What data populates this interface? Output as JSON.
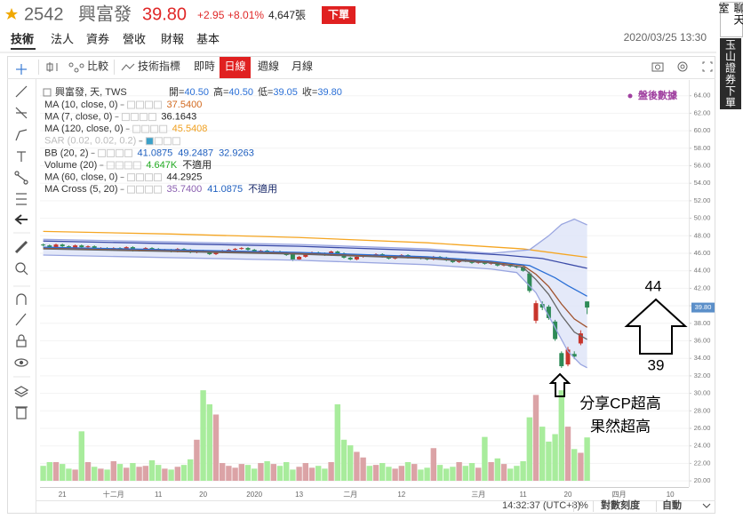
{
  "header": {
    "stock_code": "2542",
    "stock_name": "興富發",
    "price": "39.80",
    "change": "+2.95",
    "change_pct": "+8.01%",
    "volume": "4,647張",
    "order_button": "下單"
  },
  "tabs": [
    "技術",
    "法人",
    "資券",
    "營收",
    "財報",
    "基本"
  ],
  "datetime": "2020/03/25 13:30",
  "toolbar": {
    "compare": "比較",
    "indicators": "技術指標",
    "realtime": "即時",
    "daily": "日線",
    "weekly": "週線",
    "monthly": "月線"
  },
  "side_panel": {
    "chat": "聊天室",
    "broker": "玉山證券下單"
  },
  "status_bar": {
    "clock": "14:32:37 (UTC+8)",
    "percent": "%",
    "log_scale": "對數刻度",
    "auto": "自動"
  },
  "annotations": {
    "high": 44,
    "low": 39,
    "note_lines": [
      "分享CP超高",
      "果然超高"
    ]
  },
  "chart_data": {
    "type": "candlestick",
    "legend_header": {
      "symbol": "興富發, 天, TWS",
      "ohlc": [
        {
          "label": "開=",
          "value": "40.50"
        },
        {
          "label": "高=",
          "value": "40.50"
        },
        {
          "label": "低=",
          "value": "39.05"
        },
        {
          "label": "收=",
          "value": "39.80"
        }
      ]
    },
    "after_hours": "盤後數據",
    "last_price_label": "39.80",
    "categories": [
      null,
      null,
      null,
      "21",
      null,
      null,
      null,
      null,
      null,
      null,
      null,
      "十二月",
      null,
      null,
      null,
      null,
      null,
      null,
      "11",
      null,
      null,
      null,
      null,
      null,
      null,
      "20",
      null,
      null,
      null,
      null,
      null,
      null,
      null,
      "2020",
      null,
      null,
      null,
      null,
      null,
      null,
      "13",
      null,
      null,
      null,
      null,
      null,
      null,
      null,
      "二月",
      null,
      null,
      null,
      null,
      null,
      null,
      null,
      "12",
      null,
      null,
      null,
      null,
      null,
      null,
      null,
      null,
      null,
      null,
      null,
      "三月",
      null,
      null,
      null,
      null,
      null,
      null,
      "11",
      null,
      null,
      null,
      null,
      null,
      null,
      "20",
      null,
      null,
      null,
      null,
      null,
      null,
      null,
      "四月",
      null,
      null,
      null,
      null,
      null,
      null,
      null,
      "10"
    ],
    "open": [
      47.0,
      46.9,
      46.7,
      47.0,
      46.8,
      46.6,
      46.9,
      46.7,
      46.8,
      46.5,
      46.6,
      46.4,
      46.6,
      46.5,
      46.7,
      46.3,
      46.4,
      46.6,
      46.5,
      46.3,
      46.4,
      46.2,
      46.5,
      46.4,
      46.1,
      46.3,
      46.2,
      45.9,
      46.1,
      46.3,
      46.4,
      46.5,
      46.6,
      46.4,
      46.2,
      46.3,
      46.0,
      46.2,
      46.1,
      45.9,
      45.3,
      45.6,
      45.9,
      46.1,
      46.0,
      45.8,
      46.2,
      46.0,
      45.5,
      45.3,
      45.6,
      45.8,
      45.7,
      45.9,
      45.6,
      45.4,
      45.7,
      45.8,
      45.5,
      45.6,
      45.4,
      45.3,
      45.6,
      45.5,
      45.2,
      45.0,
      45.3,
      45.1,
      44.9,
      45.0,
      44.8,
      44.9,
      44.6,
      44.7,
      44.5,
      44.4,
      43.7,
      38.3,
      40.2,
      39.9,
      38.2,
      34.6,
      33.3,
      34.5,
      35.7,
      40.5,
      null,
      null,
      null,
      null,
      null,
      null,
      null,
      null,
      null,
      null,
      null,
      null,
      null
    ],
    "high": [
      47.1,
      47.0,
      47.1,
      47.1,
      46.9,
      47.0,
      47.0,
      46.9,
      46.9,
      46.7,
      46.7,
      46.7,
      46.7,
      46.8,
      46.8,
      46.5,
      46.7,
      46.7,
      46.6,
      46.5,
      46.5,
      46.6,
      46.6,
      46.5,
      46.4,
      46.4,
      46.3,
      46.2,
      46.4,
      46.5,
      46.6,
      46.7,
      46.7,
      46.5,
      46.4,
      46.4,
      46.3,
      46.3,
      46.2,
      46.0,
      45.7,
      46.0,
      46.2,
      46.2,
      46.1,
      46.3,
      46.3,
      46.1,
      45.6,
      45.7,
      45.9,
      45.9,
      46.0,
      46.0,
      45.7,
      45.8,
      45.9,
      45.9,
      45.7,
      45.7,
      45.5,
      45.7,
      45.7,
      45.6,
      45.3,
      45.4,
      45.4,
      45.2,
      45.1,
      45.1,
      45.0,
      45.0,
      44.8,
      44.8,
      44.6,
      44.5,
      43.9,
      40.6,
      40.5,
      40.1,
      38.4,
      34.8,
      35.3,
      34.8,
      37.2,
      40.5,
      null,
      null,
      null,
      null,
      null,
      null,
      null,
      null,
      null,
      null,
      null,
      null,
      null
    ],
    "low": [
      46.8,
      46.6,
      46.6,
      46.7,
      46.5,
      46.5,
      46.6,
      46.6,
      46.4,
      46.4,
      46.3,
      46.3,
      46.4,
      46.4,
      46.2,
      46.2,
      46.3,
      46.4,
      46.2,
      46.2,
      46.1,
      46.1,
      46.3,
      46.0,
      46.0,
      46.1,
      45.8,
      45.8,
      46.0,
      46.2,
      46.3,
      46.4,
      46.3,
      46.1,
      46.1,
      45.9,
      45.9,
      46.0,
      45.7,
      45.1,
      45.2,
      45.5,
      45.8,
      45.9,
      45.7,
      45.7,
      45.9,
      45.4,
      45.2,
      45.2,
      45.5,
      45.6,
      45.6,
      45.5,
      45.3,
      45.3,
      45.6,
      45.4,
      45.4,
      45.3,
      45.2,
      45.2,
      45.4,
      45.1,
      44.9,
      44.9,
      45.0,
      44.8,
      44.8,
      44.7,
      44.7,
      44.5,
      44.5,
      44.4,
      44.3,
      43.9,
      41.5,
      38.0,
      39.5,
      38.4,
      36.0,
      32.9,
      33.1,
      33.9,
      35.5,
      39.05,
      null,
      null,
      null,
      null,
      null,
      null,
      null,
      null,
      null,
      null,
      null,
      null,
      null
    ],
    "close": [
      46.9,
      46.7,
      47.0,
      46.8,
      46.6,
      46.9,
      46.7,
      46.8,
      46.5,
      46.6,
      46.4,
      46.6,
      46.5,
      46.7,
      46.3,
      46.4,
      46.6,
      46.5,
      46.3,
      46.4,
      46.2,
      46.5,
      46.4,
      46.1,
      46.3,
      46.2,
      45.9,
      46.1,
      46.3,
      46.4,
      46.5,
      46.6,
      46.4,
      46.2,
      46.3,
      46.0,
      46.2,
      46.1,
      45.8,
      45.3,
      45.6,
      45.9,
      46.1,
      46.0,
      45.8,
      46.2,
      46.0,
      45.5,
      45.3,
      45.6,
      45.8,
      45.7,
      45.9,
      45.6,
      45.4,
      45.7,
      45.8,
      45.5,
      45.6,
      45.4,
      45.3,
      45.6,
      45.5,
      45.2,
      45.0,
      45.3,
      45.1,
      44.9,
      45.0,
      44.8,
      44.9,
      44.6,
      44.7,
      44.5,
      44.4,
      44.0,
      41.7,
      40.3,
      39.8,
      38.6,
      36.2,
      33.1,
      35.0,
      34.2,
      36.85,
      39.8,
      null,
      null,
      null,
      null,
      null,
      null,
      null,
      null,
      null,
      null,
      null,
      null,
      null
    ],
    "volume": [
      1.6,
      2.0,
      2.0,
      1.8,
      1.3,
      1.2,
      5.3,
      2.0,
      1.5,
      1.3,
      1.2,
      2.1,
      1.8,
      1.4,
      1.9,
      1.5,
      1.6,
      2.2,
      1.7,
      1.3,
      1.2,
      1.5,
      1.7,
      2.3,
      4.4,
      9.7,
      8.2,
      7.1,
      1.9,
      1.6,
      1.4,
      1.8,
      1.7,
      1.3,
      1.9,
      2.1,
      1.8,
      1.6,
      2.0,
      1.2,
      1.5,
      1.9,
      1.4,
      1.6,
      1.3,
      2.0,
      8.2,
      4.4,
      3.8,
      3.1,
      2.5,
      1.6,
      1.7,
      1.9,
      1.5,
      1.3,
      1.6,
      2.0,
      1.8,
      1.2,
      1.4,
      3.5,
      1.7,
      1.3,
      1.5,
      2.0,
      1.6,
      1.9,
      1.4,
      4.7,
      2.0,
      2.4,
      1.8,
      1.3,
      1.6,
      2.1,
      6.8,
      9.2,
      5.8,
      4.2,
      5.0,
      9.7,
      5.8,
      3.4,
      3.0,
      4.647,
      null,
      null,
      null,
      null,
      null,
      null,
      null,
      null,
      null,
      null,
      null,
      null,
      null
    ],
    "up_color": "#c8352c",
    "down_color": "#2e8b57",
    "volume_up_color": "#dba3a6",
    "volume_down_color": "#a8ec9c",
    "ylim": [
      19.3,
      66.0
    ],
    "volume_ylim": [
      0,
      12
    ],
    "yticks": [
      {
        "value": 20,
        "label": "20.00"
      },
      {
        "value": 22,
        "label": "22.00"
      },
      {
        "value": 24,
        "label": "24.00"
      },
      {
        "value": 26,
        "label": "26.00"
      },
      {
        "value": 28,
        "label": "28.00"
      },
      {
        "value": 30,
        "label": "30.00"
      },
      {
        "value": 32,
        "label": "32.00"
      },
      {
        "value": 34,
        "label": "34.00"
      },
      {
        "value": 36,
        "label": "36.00"
      },
      {
        "value": 38,
        "label": "38.00"
      },
      {
        "value": 40,
        "label": "40.00"
      },
      {
        "value": 42,
        "label": "42.00"
      },
      {
        "value": 44,
        "label": "44.00"
      },
      {
        "value": 46,
        "label": "46.00"
      },
      {
        "value": 48,
        "label": "48.00"
      },
      {
        "value": 50,
        "label": "50.00"
      },
      {
        "value": 52,
        "label": "52.00"
      },
      {
        "value": 54,
        "label": "54.00"
      },
      {
        "value": 56,
        "label": "56.00"
      },
      {
        "value": 58,
        "label": "58.00"
      },
      {
        "value": 60,
        "label": "60.00"
      },
      {
        "value": 62,
        "label": "62.00"
      },
      {
        "value": 64,
        "label": "64.00"
      }
    ],
    "grid": true,
    "indicators": [
      {
        "name": "MA (10, close, 0)",
        "readouts": [
          "37.5400"
        ],
        "readout_colors": [
          "#d2691e"
        ],
        "lines": [
          {
            "color": "#a0522d",
            "x": [
              0,
              20,
              40,
              60,
              70,
              75,
              77,
              79,
              81,
              83,
              85
            ],
            "values": [
              46.6,
              46.3,
              46.0,
              45.5,
              45.0,
              44.6,
              43.6,
              42.2,
              40.2,
              38.5,
              37.54
            ]
          }
        ]
      },
      {
        "name": "MA (7, close, 0)",
        "readouts": [
          "36.1643"
        ],
        "readout_colors": [
          "#222222"
        ],
        "lines": [
          {
            "color": "#666666",
            "x": [
              0,
              20,
              40,
              60,
              70,
              75,
              77,
              79,
              81,
              83,
              85
            ],
            "values": [
              46.5,
              46.2,
              45.9,
              45.4,
              44.9,
              44.4,
              43.0,
              41.3,
              38.9,
              37.0,
              36.16
            ]
          }
        ]
      },
      {
        "name": "MA (120, close, 0)",
        "readouts": [
          "45.5408"
        ],
        "readout_colors": [
          "#f0a020"
        ],
        "lines": [
          {
            "color": "#f5a623",
            "x": [
              0,
              20,
              40,
              60,
              75,
              85
            ],
            "values": [
              48.5,
              48.2,
              47.8,
              47.2,
              46.5,
              45.54
            ]
          }
        ]
      },
      {
        "name": "SAR (0.02, 0.02, 0.2)",
        "visible": false
      },
      {
        "name": "BB (20, 2)",
        "readouts": [
          "41.0875",
          "49.2487",
          "32.9263"
        ],
        "readout_colors": [
          "#1f5fbf",
          "#1f5fbf",
          "#1f5fbf"
        ],
        "band_fill": "#dde3f8",
        "lines": [
          {
            "color": "#9aa6e0",
            "x": [
              0,
              20,
              40,
              60,
              70,
              76,
              79,
              81,
              83,
              85
            ],
            "values": [
              47.6,
              47.3,
              47.0,
              46.5,
              46.0,
              46.4,
              48.0,
              49.3,
              49.9,
              49.25
            ]
          },
          {
            "color": "#2a6fd6",
            "x": [
              0,
              20,
              40,
              60,
              70,
              76,
              80,
              82,
              84,
              85
            ],
            "values": [
              46.7,
              46.4,
              46.1,
              45.6,
              45.1,
              44.6,
              43.2,
              42.3,
              41.5,
              41.09
            ]
          },
          {
            "color": "#9aa6e0",
            "x": [
              0,
              20,
              40,
              60,
              70,
              74,
              77,
              80,
              82,
              84,
              85
            ],
            "values": [
              45.8,
              45.5,
              45.2,
              44.7,
              44.2,
              43.8,
              41.5,
              37.5,
              34.8,
              33.3,
              32.93
            ]
          }
        ]
      },
      {
        "name": "Volume (20)",
        "readouts": [
          "4.647K",
          "不適用"
        ],
        "readout_colors": [
          "#22aa22",
          "#222222"
        ]
      },
      {
        "name": "MA (60, close, 0)",
        "readouts": [
          "44.2925"
        ],
        "readout_colors": [
          "#222222"
        ],
        "lines": [
          {
            "color": "#3b4ba8",
            "x": [
              0,
              20,
              40,
              60,
              72,
              78,
              85
            ],
            "values": [
              47.4,
              47.1,
              46.8,
              46.3,
              45.8,
              45.4,
              44.29
            ]
          }
        ]
      },
      {
        "name": "MA Cross (5, 20)",
        "readouts": [
          "35.7400",
          "41.0875",
          "不適用"
        ],
        "readout_colors": [
          "#8a5fb0",
          "#1f5fbf",
          "#1a2a6a"
        ]
      }
    ]
  }
}
